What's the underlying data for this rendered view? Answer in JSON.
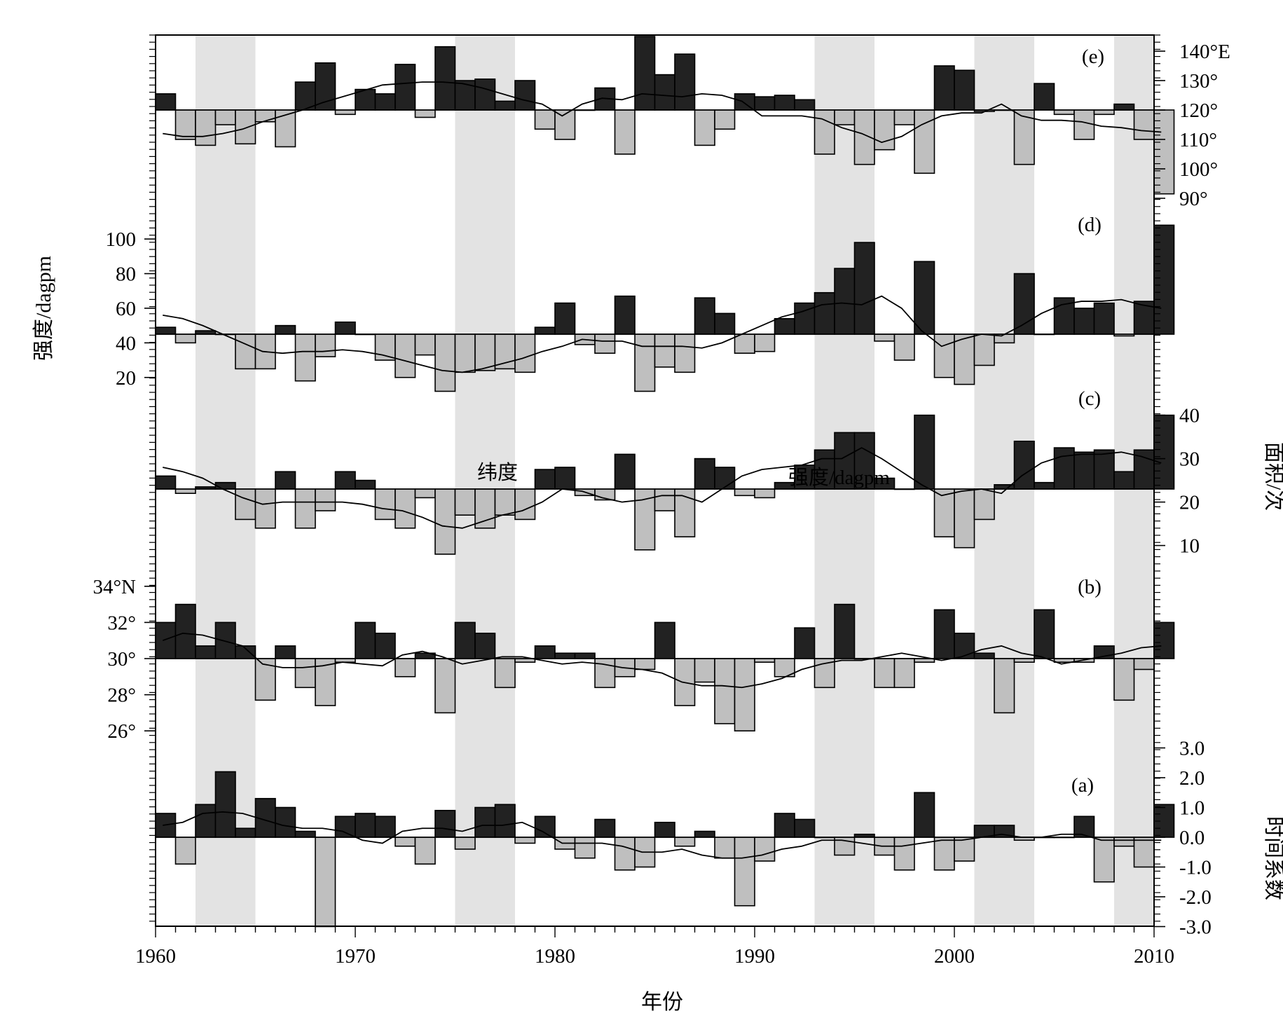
{
  "chart_data": {
    "type": "bar",
    "x_range": [
      1960,
      2010
    ],
    "x_ticks": [
      1960,
      1970,
      1980,
      1990,
      2000,
      2010
    ],
    "x_tick_labels": [
      "1960",
      "1970",
      "1980",
      "1990",
      "2000",
      "2010"
    ],
    "xlabel": "年份",
    "shaded_periods": [
      [
        1962,
        1965
      ],
      [
        1975,
        1978
      ],
      [
        1993,
        1996
      ],
      [
        2001,
        2004
      ],
      [
        2008,
        2010
      ]
    ],
    "colors": {
      "positive": "#222222",
      "negative": "#bfbfbf",
      "shade": "#e3e3e3",
      "line": "#000000"
    },
    "panels": [
      {
        "id": "e",
        "label": "(e)",
        "axis_side": "right",
        "axis_title": "",
        "baseline": 120,
        "range": [
          88,
          145
        ],
        "ticks": [
          90,
          100,
          110,
          120,
          130,
          140
        ],
        "tick_labels": [
          "90°",
          "100°",
          "110°",
          "120°",
          "130°",
          "140°E"
        ],
        "values": [
          125.5,
          110,
          108,
          115,
          108.5,
          116,
          107.5,
          129.5,
          136,
          118.5,
          127,
          125.5,
          135.5,
          117.5,
          141.5,
          130,
          130.5,
          123,
          130,
          113.5,
          110,
          120,
          127.5,
          105,
          145,
          132,
          139,
          108,
          113.5,
          125.5,
          124.5,
          125,
          123.5,
          105,
          115,
          101.5,
          106.5,
          115,
          98.5,
          135,
          133.5,
          119.5,
          120,
          101.5,
          129,
          118.5,
          110,
          118.5,
          122,
          110,
          91.5
        ],
        "smooth": [
          112,
          111,
          111,
          112,
          113.5,
          116,
          118,
          120,
          122.5,
          124.5,
          126.5,
          128.5,
          129,
          129.5,
          129.5,
          129,
          127.5,
          125.5,
          123.5,
          122,
          118,
          122,
          124,
          123.5,
          125.5,
          125,
          124.5,
          125.5,
          125,
          123,
          118,
          118,
          118,
          117,
          114,
          112,
          109,
          111,
          115,
          118,
          119,
          119,
          122,
          118,
          116.5,
          116.5,
          116,
          114.5,
          114,
          113,
          112.5
        ]
      },
      {
        "id": "d",
        "label": "(d)",
        "axis_side": "left",
        "axis_title": "强度/dagpm",
        "baseline": 45,
        "range": [
          10,
          113
        ],
        "ticks": [
          20,
          40,
          60,
          80,
          100
        ],
        "tick_labels": [
          "20",
          "40",
          "60",
          "80",
          "100"
        ],
        "values": [
          49,
          40,
          47,
          45,
          25,
          25,
          50,
          18,
          32,
          52,
          45,
          30,
          20,
          33,
          12,
          23,
          24,
          25,
          23,
          49,
          63,
          39,
          34,
          67,
          12,
          26,
          23,
          66,
          57,
          34,
          35,
          54,
          63,
          69,
          83,
          98,
          41,
          30,
          87,
          20,
          16,
          27,
          40,
          80,
          45,
          66,
          60,
          63,
          44,
          64,
          108
        ],
        "smooth": [
          56,
          54,
          50,
          45,
          40,
          35,
          34,
          35,
          35,
          36,
          35,
          33,
          30,
          27,
          24,
          23,
          25,
          28,
          31,
          35,
          38,
          42,
          41,
          41,
          38,
          38,
          38,
          37,
          40,
          45,
          50,
          55,
          58,
          62,
          63,
          62,
          67,
          60,
          47,
          38,
          42,
          45,
          44,
          50,
          57,
          62,
          64,
          64,
          65,
          62,
          60
        ]
      },
      {
        "id": "c",
        "label": "(c)",
        "axis_side": "right",
        "axis_title": "面积/次",
        "baseline": 23,
        "range": [
          3,
          44
        ],
        "ticks": [
          10,
          20,
          30,
          40
        ],
        "tick_labels": [
          "10",
          "20",
          "30",
          "40"
        ],
        "values": [
          26,
          22,
          23.5,
          24.5,
          16,
          14,
          27,
          14,
          18,
          27,
          25,
          16,
          14,
          21,
          8,
          17,
          14,
          17,
          16,
          27.5,
          28,
          21.5,
          20.5,
          31,
          9,
          18,
          12,
          30,
          28,
          21.5,
          21,
          24.5,
          28.5,
          32,
          36,
          36,
          25.5,
          23,
          40,
          12,
          9.5,
          16,
          24,
          34,
          24.5,
          32.5,
          31.5,
          32,
          27,
          32,
          40
        ],
        "smooth": [
          28,
          27,
          25.5,
          23,
          21,
          19.5,
          20,
          20,
          20,
          20,
          19.5,
          18.5,
          18,
          16.5,
          14.5,
          14,
          15.5,
          17,
          18,
          20,
          23,
          22.5,
          21,
          20,
          20.5,
          21.5,
          21.5,
          20,
          23,
          26,
          27.5,
          28,
          28.5,
          30,
          30,
          32.5,
          30,
          27,
          24,
          21.5,
          22.5,
          23,
          22,
          26,
          29,
          30.5,
          31,
          31,
          31.5,
          30.5,
          29
        ]
      },
      {
        "id": "b",
        "label": "(b)",
        "axis_side": "left",
        "axis_title": "",
        "baseline": 30,
        "range": [
          24.5,
          35
        ],
        "ticks": [
          26,
          28,
          30,
          32,
          34
        ],
        "tick_labels": [
          "26°",
          "28°",
          "30°",
          "32°",
          "34°N"
        ],
        "values": [
          32,
          33,
          30.7,
          32,
          30.7,
          27.7,
          30.7,
          28.4,
          27.4,
          29.8,
          32,
          31.4,
          29,
          30.3,
          27,
          32,
          31.4,
          28.4,
          29.8,
          30.7,
          30.3,
          30.3,
          28.4,
          29,
          29.4,
          32,
          27.4,
          28.7,
          26.4,
          26,
          29.8,
          29,
          31.7,
          28.4,
          33,
          30,
          28.4,
          28.4,
          29.8,
          32.7,
          31.4,
          30.3,
          27,
          29.8,
          32.7,
          29.8,
          29.8,
          30.7,
          27.7,
          29.4,
          32
        ],
        "smooth": [
          31,
          31.4,
          31.3,
          31,
          30.7,
          29.7,
          29.5,
          29.5,
          29.6,
          29.8,
          29.7,
          29.6,
          30.2,
          30.4,
          30.1,
          29.7,
          29.9,
          30.1,
          30.1,
          29.9,
          29.7,
          29.8,
          29.7,
          29.5,
          29.4,
          29.2,
          28.7,
          28.5,
          28.5,
          28.4,
          28.6,
          28.9,
          29.4,
          29.7,
          29.9,
          29.9,
          30.1,
          30.3,
          30.1,
          29.9,
          30.1,
          30.5,
          30.7,
          30.3,
          30.1,
          29.7,
          29.9,
          30.1,
          30.3,
          30.6,
          30.7
        ]
      },
      {
        "id": "a",
        "label": "(a)",
        "axis_side": "right",
        "axis_title": "时间系数",
        "baseline": 0,
        "range": [
          -3.1,
          3.2
        ],
        "ticks": [
          -3,
          -2,
          -1,
          0,
          1,
          2,
          3
        ],
        "tick_labels": [
          "-3.0",
          "-2.0",
          "-1.0",
          "0.0",
          "1.0",
          "2.0",
          "3.0"
        ],
        "values": [
          0.8,
          -0.9,
          1.1,
          2.2,
          0.3,
          1.3,
          1.0,
          0.2,
          -3,
          0.7,
          0.8,
          0.7,
          -0.3,
          -0.9,
          0.9,
          -0.4,
          1.0,
          1.1,
          -0.2,
          0.7,
          -0.4,
          -0.7,
          0.6,
          -1.1,
          -1.0,
          0.5,
          -0.3,
          0.2,
          -0.7,
          -2.3,
          -0.8,
          0.8,
          0.6,
          0,
          -0.6,
          0.1,
          -0.6,
          -1.1,
          1.5,
          -1.1,
          -0.8,
          0.4,
          0.4,
          -0.1,
          0,
          0,
          0.7,
          -1.5,
          -0.3,
          -1.0,
          1.1
        ],
        "smooth": [
          0.4,
          0.5,
          0.8,
          0.85,
          0.8,
          0.6,
          0.4,
          0.3,
          0.3,
          0.2,
          -0.1,
          -0.2,
          0.2,
          0.3,
          0.3,
          0.2,
          0.4,
          0.4,
          0.5,
          0.2,
          -0.2,
          -0.2,
          -0.2,
          -0.3,
          -0.5,
          -0.5,
          -0.4,
          -0.6,
          -0.7,
          -0.7,
          -0.6,
          -0.4,
          -0.3,
          -0.1,
          -0.1,
          -0.2,
          -0.3,
          -0.3,
          -0.2,
          -0.1,
          -0.1,
          0.0,
          0.1,
          0.0,
          0.0,
          0.1,
          0.1,
          -0.1,
          -0.1,
          -0.1,
          -0.1
        ]
      }
    ],
    "annotations": [
      "纬度",
      "强度/dagpm"
    ]
  }
}
